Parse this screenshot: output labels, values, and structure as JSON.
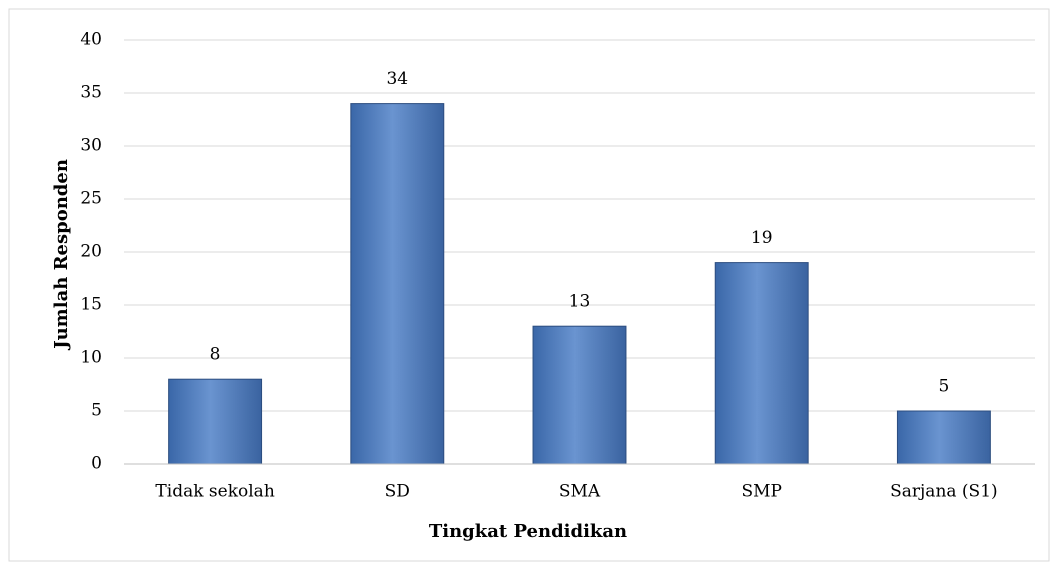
{
  "chart_data": {
    "type": "bar",
    "x_label": "Tingkat Pendidikan",
    "y_label": "Jumlah Responden",
    "categories": [
      "Tidak sekolah",
      "SD",
      "SMA",
      "SMP",
      "Sarjana (S1)"
    ],
    "values": [
      8,
      34,
      13,
      19,
      5
    ],
    "color": "#4f81bd",
    "ylim": [
      0,
      40
    ],
    "yticks": [
      0,
      5,
      10,
      15,
      20,
      25,
      30,
      35,
      40
    ],
    "grid": true
  }
}
